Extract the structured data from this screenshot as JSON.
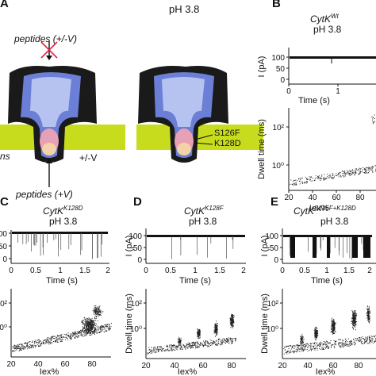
{
  "panel_a": {
    "label": "A",
    "ph": "pH 3.8",
    "peptides_top": "peptides (+/-V)",
    "peptides_bottom": "peptides (+V)",
    "voltage": "+/-V",
    "membrane_text": "ns",
    "mutation_1": "S126F",
    "mutation_2": "K128D",
    "colors": {
      "membrane": "#c8dc1e",
      "pore_dark": "#1a1a1a",
      "pore_blue": "#6b7fd6",
      "pore_pink": "#e8a0b4",
      "cross": "#e0244c"
    }
  },
  "panel_b": {
    "label": "B",
    "title": "CytK",
    "title_sup": "Wt",
    "ph": "pH 3.8",
    "trace_ylabel": "I (pA)",
    "trace_xlabel": "Time (s)",
    "trace_yticks": [
      "100",
      "50",
      "0"
    ],
    "trace_xticks": [
      "0",
      "1"
    ],
    "scatter_ylabel": "Dwell time (ms)",
    "scatter_xlabel": "Iex%",
    "scatter_xticks": [
      "20",
      "40",
      "60",
      "80"
    ],
    "scatter_yticks": [
      "10²",
      "10⁰"
    ]
  },
  "panel_c": {
    "label": "C",
    "title": "CytK",
    "title_sup": "K128D",
    "ph": "pH 3.8",
    "trace_xlabel": "Time (s)",
    "trace_yticks": [
      "100",
      "50",
      "0"
    ],
    "trace_xticks": [
      "0",
      "0.5",
      "1",
      "1.5",
      "2"
    ],
    "scatter_xlabel": "Iex%",
    "scatter_xticks": [
      "20",
      "40",
      "60",
      "80"
    ],
    "scatter_yticks": [
      "10²",
      "10⁰"
    ]
  },
  "panel_d": {
    "label": "D",
    "title": "CytK",
    "title_sup": "K128F",
    "ph": "pH 3.8",
    "trace_ylabel": "I (pA)",
    "trace_xlabel": "Time (s)",
    "trace_yticks": [
      "100",
      "50",
      "0"
    ],
    "trace_xticks": [
      "0",
      "0.5",
      "1",
      "1.5",
      "2"
    ],
    "scatter_ylabel": "Dwell time (ms)",
    "scatter_xlabel": "Iex%",
    "scatter_xticks": [
      "20",
      "40",
      "60",
      "80"
    ],
    "scatter_yticks": [
      "10²",
      "10⁰"
    ]
  },
  "panel_e": {
    "label": "E",
    "title": "CytK",
    "title_sup": "S126F+K128D",
    "ph": "pH 3.8",
    "trace_ylabel": "I (pA)",
    "trace_xlabel": "Time (s)",
    "trace_yticks": [
      "100",
      "50",
      "0"
    ],
    "trace_xticks": [
      "0",
      "0.5",
      "1",
      "1.5",
      "2"
    ],
    "scatter_ylabel": "Dwell time (ms)",
    "scatter_xlabel": "Iex%",
    "scatter_xticks": [
      "20",
      "40",
      "60",
      "80"
    ],
    "scatter_yticks": [
      "10²",
      "10⁰"
    ]
  }
}
